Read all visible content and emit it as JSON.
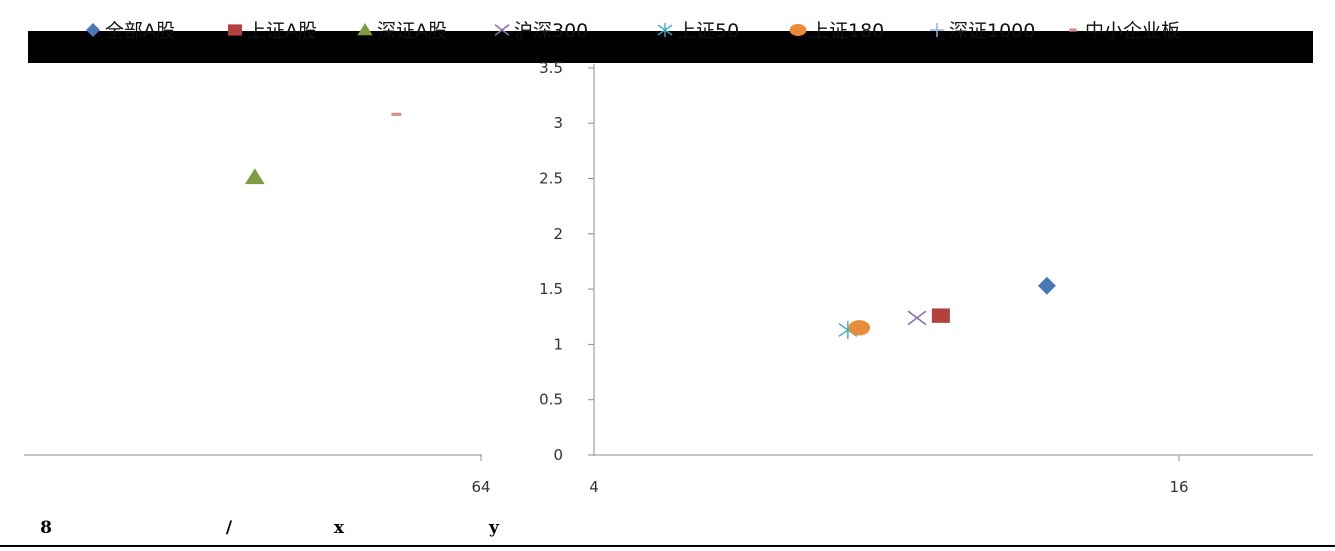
{
  "chart_data": {
    "type": "scatter",
    "legend": {
      "placement": "top",
      "entries": [
        {
          "name": "全部A股",
          "marker": "diamond",
          "color": "#4a78b7"
        },
        {
          "name": "上证A股",
          "marker": "square",
          "color": "#b3413e"
        },
        {
          "name": "深证A股",
          "marker": "triangle",
          "color": "#7e9c42"
        },
        {
          "name": "沪深300",
          "marker": "x",
          "color": "#8a6fab"
        },
        {
          "name": "上证50",
          "marker": "star",
          "color": "#44a9c2"
        },
        {
          "name": "上证180",
          "marker": "circle",
          "color": "#e88b3b"
        },
        {
          "name": "深证1000",
          "marker": "plus",
          "color": "#8fb4dc"
        },
        {
          "name": "中小企业板",
          "marker": "dash",
          "color": "#d8908f"
        }
      ]
    },
    "x_scale": "log2",
    "x_ticks": [
      {
        "value": 64,
        "label": "64"
      },
      {
        "value": 4,
        "label": "4"
      },
      {
        "value": 16,
        "label": "16"
      }
    ],
    "y_ticks": [
      {
        "value": 0,
        "label": "0"
      },
      {
        "value": 0.5,
        "label": "0.5"
      },
      {
        "value": 1,
        "label": "1"
      },
      {
        "value": 1.5,
        "label": "1.5"
      },
      {
        "value": 2,
        "label": "2"
      },
      {
        "value": 2.5,
        "label": "2.5"
      },
      {
        "value": 3,
        "label": "3"
      },
      {
        "value": 3.5,
        "label": "3.5"
      }
    ],
    "ylim": [
      0,
      3.5
    ],
    "grid": false,
    "points": [
      {
        "series": "全部A股",
        "x": 11.7,
        "y": 1.53
      },
      {
        "series": "上证A股",
        "x": 9.1,
        "y": 1.26
      },
      {
        "series": "深证A股",
        "x": 37.5,
        "y": 2.51
      },
      {
        "series": "沪深300",
        "x": 8.6,
        "y": 1.24
      },
      {
        "series": "上证50",
        "x": 7.3,
        "y": 1.13
      },
      {
        "series": "上证180",
        "x": 7.5,
        "y": 1.15
      },
      {
        "series": "中小企业板",
        "x": 52.4,
        "y": 3.08
      }
    ]
  },
  "footer": {
    "chars": [
      "8",
      "/",
      "x",
      "y"
    ]
  }
}
